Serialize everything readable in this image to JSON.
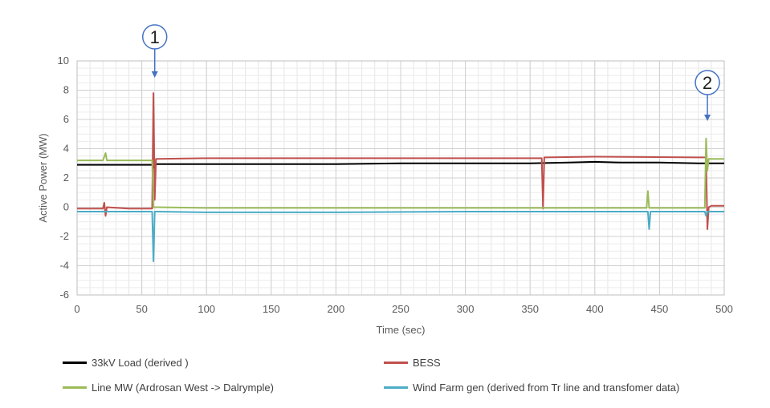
{
  "chart_data": {
    "type": "line",
    "title": "",
    "xlabel": "Time (sec)",
    "ylabel": "Active Power (MW)",
    "xlim": [
      0,
      500
    ],
    "ylim": [
      -6,
      10
    ],
    "x_ticks": [
      0,
      50,
      100,
      150,
      200,
      250,
      300,
      350,
      400,
      450,
      500
    ],
    "y_ticks": [
      -6,
      -4,
      -2,
      0,
      2,
      4,
      6,
      8,
      10
    ],
    "grid": true,
    "legend_position": "bottom",
    "series": [
      {
        "name": "33kV Load (derived )",
        "color": "#000000",
        "x": [
          0,
          58,
          59,
          60,
          62,
          100,
          150,
          200,
          250,
          300,
          350,
          380,
          400,
          420,
          450,
          480,
          500
        ],
        "y": [
          2.9,
          2.9,
          2.7,
          2.9,
          2.95,
          2.95,
          2.95,
          2.95,
          3.0,
          3.0,
          3.0,
          3.05,
          3.1,
          3.05,
          3.05,
          3.0,
          3.0
        ]
      },
      {
        "name": "BESS",
        "color": "#c0504d",
        "x": [
          0,
          20,
          21,
          22,
          23,
          40,
          58,
          59,
          60,
          61,
          62,
          100,
          200,
          300,
          359,
          360,
          361,
          362,
          400,
          480,
          486,
          487,
          488,
          490,
          500
        ],
        "y": [
          -0.1,
          -0.1,
          0.3,
          -0.6,
          0.0,
          -0.1,
          -0.1,
          7.8,
          0.5,
          3.3,
          3.3,
          3.35,
          3.35,
          3.35,
          3.35,
          -0.1,
          3.4,
          3.4,
          3.45,
          3.4,
          3.4,
          -1.5,
          0.0,
          0.1,
          0.1
        ]
      },
      {
        "name": "Line MW (Ardrosan West -> Dalrymple)",
        "color": "#9bbb59",
        "x": [
          0,
          20,
          22,
          23,
          40,
          58,
          59,
          60,
          62,
          100,
          200,
          300,
          400,
          440,
          441,
          442,
          443,
          485,
          486,
          487,
          488,
          490,
          500
        ],
        "y": [
          3.2,
          3.2,
          3.7,
          3.2,
          3.2,
          3.2,
          0.0,
          0.0,
          0.0,
          -0.05,
          -0.05,
          -0.05,
          -0.05,
          -0.05,
          1.1,
          -0.05,
          -0.05,
          -0.05,
          4.7,
          2.5,
          3.3,
          3.3,
          3.3
        ]
      },
      {
        "name": "Wind Farm gen (derived from Tr line and transfomer data)",
        "color": "#4bacc6",
        "x": [
          0,
          58,
          59,
          60,
          61,
          62,
          100,
          200,
          300,
          400,
          441,
          442,
          443,
          485,
          486,
          487,
          488,
          500
        ],
        "y": [
          -0.3,
          -0.3,
          -3.7,
          -0.3,
          -0.3,
          -0.3,
          -0.35,
          -0.35,
          -0.3,
          -0.3,
          -0.3,
          -1.5,
          -0.3,
          -0.3,
          -0.6,
          -0.3,
          -0.3,
          -0.3
        ]
      }
    ],
    "annotations": [
      {
        "label": "1",
        "x": 60
      },
      {
        "label": "2",
        "x": 487
      }
    ]
  }
}
